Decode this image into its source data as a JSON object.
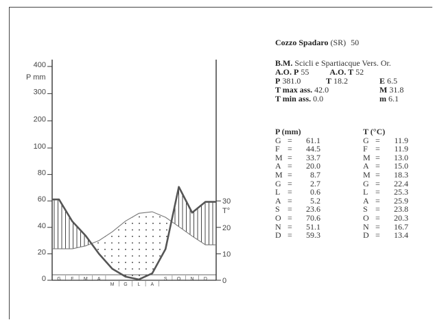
{
  "station": {
    "name": "Cozzo Spadaro",
    "province": "(SR)",
    "code": "50",
    "basin_label": "B.M.",
    "basin": "Scicli e Spartiacque Vers. Or.",
    "ao_p_label": "A.O. P",
    "ao_p": "55",
    "ao_t_label": "A.O. T",
    "ao_t": "52",
    "p_label": "P",
    "p": "381.0",
    "t_label": "T",
    "t": "18.2",
    "e_label": "E",
    "e": "6.5",
    "tmax_label": "T max ass.",
    "tmax": "42.0",
    "M_label": "M",
    "M": "31.8",
    "tmin_label": "T min ass.",
    "tmin": "0.0",
    "m_label": "m",
    "m": "6.1"
  },
  "table": {
    "p_header": "P (mm)",
    "t_header": "T (°C)",
    "p_rows": [
      {
        "m": "G",
        "v": "61.1"
      },
      {
        "m": "F",
        "v": "44.5"
      },
      {
        "m": "M",
        "v": "33.7"
      },
      {
        "m": "A",
        "v": "20.0"
      },
      {
        "m": "M",
        "v": "8.7"
      },
      {
        "m": "G",
        "v": "2.7"
      },
      {
        "m": "L",
        "v": "0.6"
      },
      {
        "m": "A",
        "v": "5.2"
      },
      {
        "m": "S",
        "v": "23.6"
      },
      {
        "m": "O",
        "v": "70.6"
      },
      {
        "m": "N",
        "v": "51.1"
      },
      {
        "m": "D",
        "v": "59.3"
      }
    ],
    "t_rows": [
      {
        "m": "G",
        "v": "11.9"
      },
      {
        "m": "F",
        "v": "11.9"
      },
      {
        "m": "M",
        "v": "13.0"
      },
      {
        "m": "A",
        "v": "15.0"
      },
      {
        "m": "M",
        "v": "18.3"
      },
      {
        "m": "G",
        "v": "22.4"
      },
      {
        "m": "L",
        "v": "25.3"
      },
      {
        "m": "A",
        "v": "25.9"
      },
      {
        "m": "S",
        "v": "23.8"
      },
      {
        "m": "O",
        "v": "20.3"
      },
      {
        "m": "N",
        "v": "16.7"
      },
      {
        "m": "D",
        "v": "13.4"
      }
    ]
  },
  "chart_data": {
    "type": "line",
    "months": [
      "G",
      "F",
      "M",
      "A",
      "M",
      "G",
      "L",
      "A",
      "S",
      "O",
      "N",
      "D"
    ],
    "series": [
      {
        "values": [
          61.1,
          44.5,
          33.7,
          20.0,
          8.7,
          2.7,
          0.6,
          5.2,
          23.6,
          70.6,
          51.1,
          59.3
        ]
      },
      {
        "values": [
          11.9,
          11.9,
          13.0,
          15.0,
          18.3,
          22.4,
          25.3,
          25.9,
          23.8,
          20.3,
          16.7,
          13.4
        ]
      }
    ],
    "left_axis": {
      "label": "P mm",
      "ticks": [
        "0",
        "20",
        "40",
        "60",
        "80",
        "100",
        "200",
        "300",
        "400"
      ]
    },
    "right_axis": {
      "label": "T°",
      "ticks": [
        "0",
        "10",
        "20",
        "30"
      ]
    },
    "dry_fill": "dotted",
    "wet_fill": "vertical-hatch",
    "colors": {
      "line": "#555555",
      "temp_line": "#777777",
      "axis": "#333333"
    }
  }
}
